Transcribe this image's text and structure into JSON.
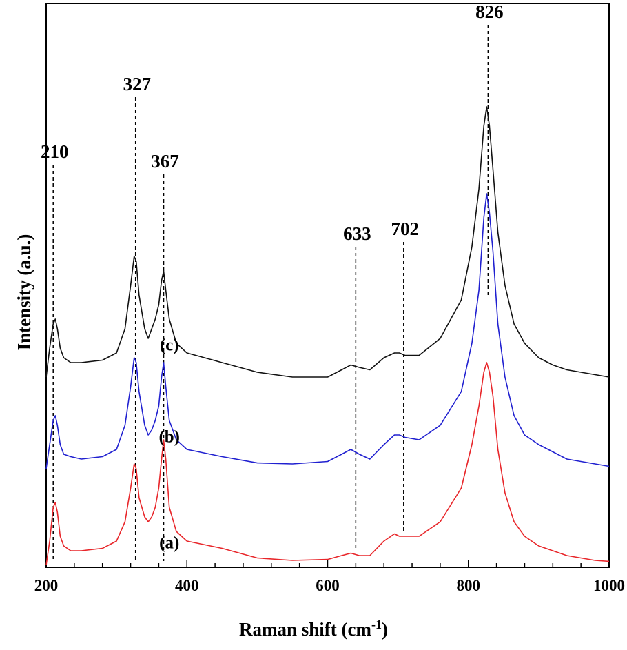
{
  "chart_data": {
    "type": "line",
    "title": "",
    "xlabel": "Raman shift (cm",
    "xlabel_sup": "-1",
    "xlabel_close": ")",
    "ylabel": "Intensity (a.u.)",
    "xlim": [
      200,
      1000
    ],
    "ylim": [
      0,
      1
    ],
    "x_ticks": [
      200,
      400,
      600,
      800,
      1000
    ],
    "x_tick_labels": [
      "200",
      "400",
      "600",
      "800",
      "1000"
    ],
    "x_minor_step": 40,
    "grid": false,
    "legend": "none",
    "series": [
      {
        "label": "(a)",
        "color": "#e8262a",
        "offset": 0.0,
        "x": [
          200,
          205,
          210,
          213,
          216,
          220,
          225,
          235,
          250,
          280,
          300,
          312,
          320,
          325,
          328,
          332,
          340,
          345,
          350,
          355,
          360,
          364,
          367,
          370,
          375,
          385,
          400,
          450,
          500,
          550,
          600,
          620,
          633,
          645,
          660,
          680,
          695,
          702,
          710,
          730,
          760,
          790,
          805,
          815,
          822,
          826,
          830,
          835,
          842,
          852,
          865,
          880,
          900,
          920,
          940,
          960,
          980,
          1000
        ],
        "y": [
          0.0,
          0.05,
          0.12,
          0.13,
          0.11,
          0.06,
          0.04,
          0.03,
          0.03,
          0.035,
          0.05,
          0.09,
          0.16,
          0.21,
          0.2,
          0.14,
          0.1,
          0.09,
          0.1,
          0.12,
          0.16,
          0.22,
          0.26,
          0.22,
          0.12,
          0.07,
          0.05,
          0.035,
          0.015,
          0.01,
          0.012,
          0.02,
          0.025,
          0.02,
          0.02,
          0.05,
          0.065,
          0.06,
          0.06,
          0.06,
          0.09,
          0.16,
          0.25,
          0.33,
          0.4,
          0.42,
          0.4,
          0.35,
          0.24,
          0.15,
          0.09,
          0.06,
          0.04,
          0.03,
          0.02,
          0.015,
          0.01,
          0.008
        ]
      },
      {
        "label": "(b)",
        "color": "#2020d0",
        "offset": 0.2,
        "x": [
          200,
          205,
          210,
          213,
          216,
          220,
          225,
          235,
          250,
          280,
          300,
          312,
          320,
          325,
          328,
          332,
          340,
          345,
          350,
          355,
          360,
          364,
          367,
          370,
          375,
          385,
          400,
          450,
          500,
          550,
          600,
          620,
          633,
          645,
          660,
          680,
          695,
          702,
          710,
          730,
          760,
          790,
          805,
          815,
          822,
          826,
          830,
          835,
          842,
          852,
          865,
          880,
          900,
          920,
          940,
          960,
          980,
          1000
        ],
        "y": [
          0.0,
          0.05,
          0.1,
          0.11,
          0.09,
          0.05,
          0.03,
          0.025,
          0.02,
          0.025,
          0.04,
          0.09,
          0.17,
          0.23,
          0.22,
          0.16,
          0.09,
          0.07,
          0.08,
          0.1,
          0.13,
          0.19,
          0.22,
          0.17,
          0.1,
          0.06,
          0.04,
          0.025,
          0.012,
          0.01,
          0.015,
          0.03,
          0.04,
          0.03,
          0.02,
          0.05,
          0.07,
          0.07,
          0.065,
          0.06,
          0.09,
          0.16,
          0.26,
          0.37,
          0.52,
          0.57,
          0.53,
          0.45,
          0.3,
          0.19,
          0.11,
          0.07,
          0.05,
          0.035,
          0.02,
          0.015,
          0.01,
          0.005
        ]
      },
      {
        "label": "(c)",
        "color": "#111111",
        "offset": 0.39,
        "x": [
          200,
          205,
          210,
          213,
          216,
          220,
          225,
          235,
          250,
          280,
          300,
          312,
          320,
          325,
          328,
          332,
          340,
          345,
          350,
          355,
          360,
          364,
          367,
          370,
          375,
          385,
          400,
          450,
          500,
          550,
          600,
          620,
          633,
          645,
          660,
          680,
          695,
          702,
          710,
          730,
          760,
          790,
          805,
          815,
          822,
          826,
          830,
          835,
          842,
          852,
          865,
          880,
          900,
          920,
          940,
          960,
          980,
          1000
        ],
        "y": [
          0.0,
          0.06,
          0.11,
          0.12,
          0.1,
          0.06,
          0.04,
          0.03,
          0.03,
          0.035,
          0.05,
          0.1,
          0.19,
          0.25,
          0.24,
          0.17,
          0.1,
          0.08,
          0.1,
          0.12,
          0.15,
          0.2,
          0.22,
          0.18,
          0.12,
          0.07,
          0.05,
          0.03,
          0.01,
          0.0,
          0.0,
          0.015,
          0.025,
          0.02,
          0.015,
          0.04,
          0.05,
          0.05,
          0.045,
          0.045,
          0.08,
          0.16,
          0.27,
          0.39,
          0.52,
          0.56,
          0.52,
          0.43,
          0.3,
          0.19,
          0.11,
          0.07,
          0.04,
          0.025,
          0.015,
          0.01,
          0.005,
          0.0
        ]
      }
    ],
    "annotations": [
      {
        "text": "210",
        "x": 210,
        "line_top": 0.83,
        "line_bottom": 0.0
      },
      {
        "text": "327",
        "x": 327,
        "line_top": 0.97,
        "line_bottom": 0.0
      },
      {
        "text": "367",
        "x": 367,
        "line_top": 0.81,
        "line_bottom": 0.0
      },
      {
        "text": "633",
        "x": 640,
        "line_top": 0.66,
        "line_bottom": 0.02
      },
      {
        "text": "702",
        "x": 708,
        "line_top": 0.67,
        "line_bottom": 0.06
      },
      {
        "text": "826",
        "x": 828,
        "line_top": 1.12,
        "line_bottom": 0.55
      }
    ]
  }
}
